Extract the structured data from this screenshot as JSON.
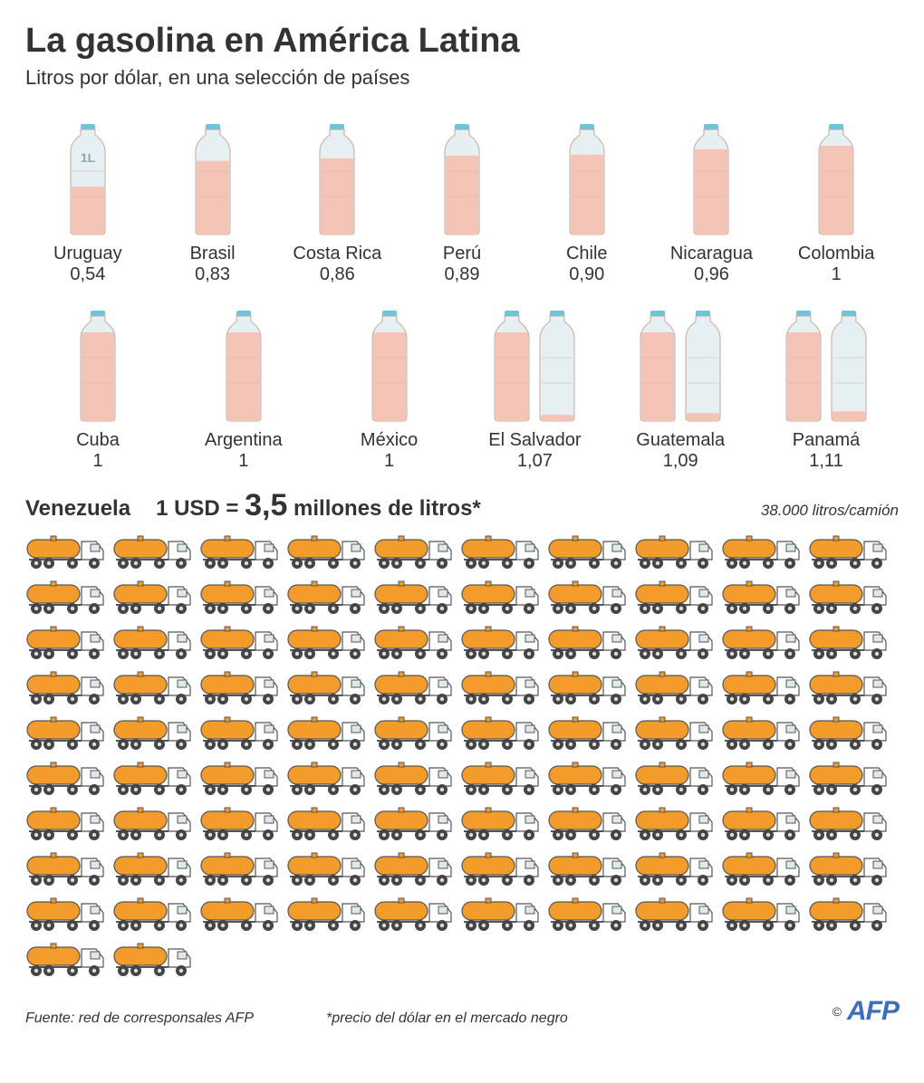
{
  "colors": {
    "background": "#ffffff",
    "text": "#333333",
    "bottle_fill": "#f4c5b6",
    "bottle_empty": "#e6f0f3",
    "bottle_cap": "#6dc5dc",
    "bottle_outline": "#c4a89c",
    "truck_tank": "#f39c2c",
    "truck_outline": "#555555",
    "truck_cab": "#ffffff",
    "truck_wheel": "#444444",
    "afp_blue": "#3b6fb6"
  },
  "title": "La gasolina en América Latina",
  "subtitle": "Litros por dólar, en una selección de países",
  "bottle_legend": "1L",
  "countries_row1": [
    {
      "name": "Uruguay",
      "value_label": "0,54",
      "fill": 0.54,
      "show_legend": true
    },
    {
      "name": "Brasil",
      "value_label": "0,83",
      "fill": 0.83
    },
    {
      "name": "Costa Rica",
      "value_label": "0,86",
      "fill": 0.86
    },
    {
      "name": "Perú",
      "value_label": "0,89",
      "fill": 0.89
    },
    {
      "name": "Chile",
      "value_label": "0,90",
      "fill": 0.9
    },
    {
      "name": "Nicaragua",
      "value_label": "0,96",
      "fill": 0.96
    },
    {
      "name": "Colombia",
      "value_label": "1",
      "fill": 1.0
    }
  ],
  "countries_row2": [
    {
      "name": "Cuba",
      "value_label": "1",
      "fill": 1.0
    },
    {
      "name": "Argentina",
      "value_label": "1",
      "fill": 1.0
    },
    {
      "name": "México",
      "value_label": "1",
      "fill": 1.0
    },
    {
      "name": "El Salvador",
      "value_label": "1,07",
      "fill": 1.07
    },
    {
      "name": "Guatemala",
      "value_label": "1,09",
      "fill": 1.09
    },
    {
      "name": "Panamá",
      "value_label": "1,11",
      "fill": 1.11
    }
  ],
  "venezuela": {
    "name": "Venezuela",
    "eq_prefix": "1 USD = ",
    "eq_big": "3,5",
    "eq_suffix": " millones de litros*",
    "right_note": "38.000 litros/camión",
    "truck_count": 92
  },
  "footer": {
    "source": "Fuente: red de corresponsales AFP",
    "note": "*precio del dólar en el mercado negro",
    "copyright": "©",
    "logo": "AFP"
  }
}
